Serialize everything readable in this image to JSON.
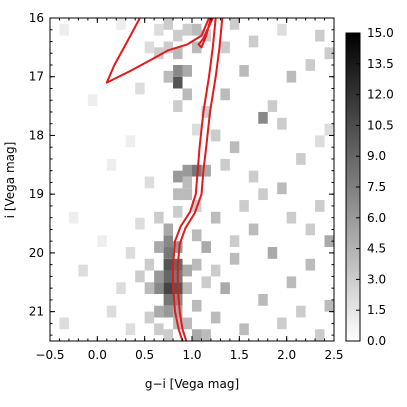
{
  "chart_data": {
    "type": "heatmap",
    "title": "",
    "xlabel": "g−i [Vega mag]",
    "ylabel": "i [Vega mag]",
    "xlim": [
      -0.5,
      2.5
    ],
    "ylim": [
      21.5,
      16.0
    ],
    "y_inverted": true,
    "x_ticks": [
      -0.5,
      0.0,
      0.5,
      1.0,
      1.5,
      2.0,
      2.5
    ],
    "x_tick_labels": [
      "−0.5",
      "0.0",
      "0.5",
      "1.0",
      "1.5",
      "2.0",
      "2.5"
    ],
    "y_ticks": [
      17,
      18,
      19,
      20,
      21
    ],
    "y_tick_labels": [
      "17",
      "18",
      "19",
      "20",
      "21"
    ],
    "grid": false,
    "colorbar": {
      "min": 0.0,
      "max": 15.0,
      "ticks": [
        0.0,
        1.5,
        3.0,
        4.5,
        6.0,
        7.5,
        9.0,
        10.5,
        12.0,
        13.5,
        15.0
      ],
      "tick_labels": [
        "0.0",
        "1.5",
        "3.0",
        "4.5",
        "6.0",
        "7.5",
        "9.0",
        "10.5",
        "12.0",
        "13.5",
        "15.0"
      ],
      "colormap": "greys",
      "color_low": "#ffffff",
      "color_high": "#000000"
    },
    "cells": [
      {
        "x": 0.75,
        "y": 20.2,
        "v": 10
      },
      {
        "x": 0.75,
        "y": 20.4,
        "v": 9
      },
      {
        "x": 0.75,
        "y": 20.6,
        "v": 11
      },
      {
        "x": 0.75,
        "y": 20.0,
        "v": 8
      },
      {
        "x": 0.75,
        "y": 19.8,
        "v": 7
      },
      {
        "x": 0.75,
        "y": 20.8,
        "v": 8
      },
      {
        "x": 0.85,
        "y": 20.2,
        "v": 9
      },
      {
        "x": 0.85,
        "y": 20.4,
        "v": 8
      },
      {
        "x": 0.85,
        "y": 20.6,
        "v": 10
      },
      {
        "x": 0.85,
        "y": 19.9,
        "v": 6
      },
      {
        "x": 0.85,
        "y": 20.8,
        "v": 7
      },
      {
        "x": 0.65,
        "y": 20.4,
        "v": 6
      },
      {
        "x": 0.65,
        "y": 20.6,
        "v": 7
      },
      {
        "x": 0.65,
        "y": 21.0,
        "v": 5
      },
      {
        "x": 0.75,
        "y": 21.0,
        "v": 6
      },
      {
        "x": 0.85,
        "y": 21.0,
        "v": 5
      },
      {
        "x": 0.65,
        "y": 19.9,
        "v": 5
      },
      {
        "x": 0.75,
        "y": 19.6,
        "v": 5
      },
      {
        "x": 0.95,
        "y": 20.3,
        "v": 5
      },
      {
        "x": 0.95,
        "y": 20.6,
        "v": 4
      },
      {
        "x": 1.05,
        "y": 20.9,
        "v": 4
      },
      {
        "x": 0.95,
        "y": 21.2,
        "v": 4
      },
      {
        "x": 0.85,
        "y": 21.2,
        "v": 4
      },
      {
        "x": 0.55,
        "y": 20.6,
        "v": 4
      },
      {
        "x": 0.55,
        "y": 20.2,
        "v": 3
      },
      {
        "x": 0.75,
        "y": 21.4,
        "v": 3
      },
      {
        "x": 0.45,
        "y": 20.4,
        "v": 3
      },
      {
        "x": 1.05,
        "y": 18.6,
        "v": 8
      },
      {
        "x": 0.95,
        "y": 18.6,
        "v": 6
      },
      {
        "x": 0.85,
        "y": 18.7,
        "v": 6
      },
      {
        "x": 1.15,
        "y": 18.6,
        "v": 5
      },
      {
        "x": 0.95,
        "y": 18.8,
        "v": 4
      },
      {
        "x": 0.85,
        "y": 19.0,
        "v": 4
      },
      {
        "x": 0.95,
        "y": 19.0,
        "v": 4
      },
      {
        "x": 0.85,
        "y": 19.3,
        "v": 3
      },
      {
        "x": 1.05,
        "y": 19.2,
        "v": 3
      },
      {
        "x": 0.85,
        "y": 17.1,
        "v": 10
      },
      {
        "x": 0.85,
        "y": 16.9,
        "v": 7
      },
      {
        "x": 0.95,
        "y": 16.9,
        "v": 5
      },
      {
        "x": 0.75,
        "y": 17.0,
        "v": 4
      },
      {
        "x": 0.95,
        "y": 17.3,
        "v": 4
      },
      {
        "x": 0.85,
        "y": 16.6,
        "v": 4
      },
      {
        "x": 0.85,
        "y": 17.5,
        "v": 3
      },
      {
        "x": 1.05,
        "y": 16.5,
        "v": 4
      },
      {
        "x": 0.95,
        "y": 16.2,
        "v": 3
      },
      {
        "x": 0.75,
        "y": 16.1,
        "v": 3
      },
      {
        "x": 1.15,
        "y": 16.3,
        "v": 3
      },
      {
        "x": 0.65,
        "y": 16.6,
        "v": 3
      },
      {
        "x": 0.65,
        "y": 16.2,
        "v": 2
      },
      {
        "x": 0.75,
        "y": 16.5,
        "v": 3
      },
      {
        "x": 0.85,
        "y": 16.3,
        "v": 3
      },
      {
        "x": 1.75,
        "y": 17.7,
        "v": 7
      },
      {
        "x": 1.55,
        "y": 16.9,
        "v": 4
      },
      {
        "x": 2.05,
        "y": 17.0,
        "v": 4
      },
      {
        "x": 1.35,
        "y": 17.3,
        "v": 4
      },
      {
        "x": 2.25,
        "y": 16.8,
        "v": 3
      },
      {
        "x": 1.45,
        "y": 18.2,
        "v": 4
      },
      {
        "x": 2.15,
        "y": 18.4,
        "v": 3
      },
      {
        "x": 1.95,
        "y": 18.9,
        "v": 4
      },
      {
        "x": 2.35,
        "y": 19.2,
        "v": 3
      },
      {
        "x": 1.25,
        "y": 19.4,
        "v": 4
      },
      {
        "x": 1.65,
        "y": 19.6,
        "v": 4
      },
      {
        "x": 2.45,
        "y": 19.8,
        "v": 5
      },
      {
        "x": 1.15,
        "y": 19.9,
        "v": 5
      },
      {
        "x": 1.45,
        "y": 20.1,
        "v": 4
      },
      {
        "x": 1.85,
        "y": 20.0,
        "v": 5
      },
      {
        "x": 2.25,
        "y": 20.2,
        "v": 4
      },
      {
        "x": 1.35,
        "y": 20.6,
        "v": 5
      },
      {
        "x": 1.75,
        "y": 20.8,
        "v": 4
      },
      {
        "x": 2.05,
        "y": 20.5,
        "v": 4
      },
      {
        "x": 2.45,
        "y": 20.9,
        "v": 4
      },
      {
        "x": 1.25,
        "y": 21.1,
        "v": 4
      },
      {
        "x": 1.55,
        "y": 21.3,
        "v": 4
      },
      {
        "x": 1.95,
        "y": 21.2,
        "v": 3
      },
      {
        "x": 2.35,
        "y": 21.4,
        "v": 3
      },
      {
        "x": 1.15,
        "y": 21.4,
        "v": 4
      },
      {
        "x": 1.05,
        "y": 21.4,
        "v": 5
      },
      {
        "x": 1.35,
        "y": 16.5,
        "v": 3
      },
      {
        "x": 1.65,
        "y": 16.4,
        "v": 3
      },
      {
        "x": 1.95,
        "y": 16.2,
        "v": 2
      },
      {
        "x": 2.35,
        "y": 16.3,
        "v": 3
      },
      {
        "x": 1.85,
        "y": 17.5,
        "v": 3
      },
      {
        "x": 2.45,
        "y": 17.9,
        "v": 2
      },
      {
        "x": 1.25,
        "y": 18.0,
        "v": 3
      },
      {
        "x": 1.65,
        "y": 18.7,
        "v": 3
      },
      {
        "x": 2.25,
        "y": 19.6,
        "v": 3
      },
      {
        "x": 1.55,
        "y": 19.2,
        "v": 3
      },
      {
        "x": 1.05,
        "y": 19.7,
        "v": 4
      },
      {
        "x": 0.45,
        "y": 19.5,
        "v": 2
      },
      {
        "x": 0.35,
        "y": 20.0,
        "v": 2
      },
      {
        "x": 0.25,
        "y": 20.6,
        "v": 2
      },
      {
        "x": 0.15,
        "y": 21.0,
        "v": 2
      },
      {
        "x": 0.35,
        "y": 21.3,
        "v": 2
      },
      {
        "x": -0.15,
        "y": 20.3,
        "v": 2
      },
      {
        "x": -0.35,
        "y": 21.2,
        "v": 2
      },
      {
        "x": 0.05,
        "y": 19.8,
        "v": 1
      },
      {
        "x": -0.25,
        "y": 19.4,
        "v": 1
      },
      {
        "x": 0.15,
        "y": 18.5,
        "v": 1
      },
      {
        "x": 0.35,
        "y": 18.1,
        "v": 1
      },
      {
        "x": -0.05,
        "y": 17.4,
        "v": 1
      },
      {
        "x": 0.45,
        "y": 17.2,
        "v": 2
      },
      {
        "x": 0.55,
        "y": 16.5,
        "v": 2
      },
      {
        "x": -0.35,
        "y": 16.2,
        "v": 1
      },
      {
        "x": 0.25,
        "y": 16.1,
        "v": 1
      },
      {
        "x": 0.55,
        "y": 18.8,
        "v": 2
      },
      {
        "x": 0.65,
        "y": 19.4,
        "v": 3
      },
      {
        "x": 0.55,
        "y": 21.1,
        "v": 3
      },
      {
        "x": 0.65,
        "y": 21.3,
        "v": 3
      },
      {
        "x": 1.05,
        "y": 20.2,
        "v": 4
      },
      {
        "x": 1.15,
        "y": 20.5,
        "v": 3
      },
      {
        "x": 1.25,
        "y": 20.3,
        "v": 3
      },
      {
        "x": 2.15,
        "y": 21.0,
        "v": 3
      },
      {
        "x": 2.05,
        "y": 19.4,
        "v": 3
      },
      {
        "x": 1.45,
        "y": 19.8,
        "v": 3
      },
      {
        "x": 1.35,
        "y": 18.5,
        "v": 3
      },
      {
        "x": 1.75,
        "y": 19.0,
        "v": 3
      },
      {
        "x": 2.35,
        "y": 18.1,
        "v": 2
      },
      {
        "x": 1.95,
        "y": 17.8,
        "v": 3
      },
      {
        "x": 1.15,
        "y": 17.6,
        "v": 3
      },
      {
        "x": 1.05,
        "y": 17.9,
        "v": 2
      },
      {
        "x": 1.05,
        "y": 16.2,
        "v": 4
      },
      {
        "x": 1.45,
        "y": 16.1,
        "v": 3
      },
      {
        "x": 2.45,
        "y": 16.6,
        "v": 3
      }
    ],
    "isochrones": [
      {
        "color": "#e31a1c",
        "points": [
          [
            0.45,
            16.0
          ],
          [
            0.3,
            16.45
          ],
          [
            0.18,
            16.8
          ],
          [
            0.1,
            17.1
          ],
          [
            0.35,
            16.9
          ],
          [
            0.58,
            16.7
          ],
          [
            0.75,
            16.55
          ],
          [
            0.95,
            16.45
          ],
          [
            1.1,
            16.3
          ],
          [
            1.18,
            16.0
          ]
        ]
      },
      {
        "color": "#e31a1c",
        "points": [
          [
            1.22,
            16.0
          ],
          [
            1.12,
            16.35
          ],
          [
            1.07,
            16.45
          ],
          [
            1.1,
            16.5
          ],
          [
            1.15,
            16.3
          ],
          [
            1.2,
            16.0
          ]
        ]
      },
      {
        "color": "#e31a1c",
        "points": [
          [
            1.25,
            16.0
          ],
          [
            1.22,
            16.5
          ],
          [
            1.18,
            17.0
          ],
          [
            1.12,
            17.6
          ],
          [
            1.08,
            18.2
          ],
          [
            1.06,
            18.6
          ],
          [
            1.04,
            19.0
          ],
          [
            0.98,
            19.3
          ],
          [
            0.88,
            19.55
          ],
          [
            0.82,
            19.8
          ],
          [
            0.8,
            20.2
          ],
          [
            0.8,
            20.6
          ],
          [
            0.82,
            21.0
          ],
          [
            0.86,
            21.3
          ],
          [
            0.9,
            21.5
          ]
        ]
      },
      {
        "color": "#e31a1c",
        "points": [
          [
            1.32,
            16.0
          ],
          [
            1.29,
            16.5
          ],
          [
            1.25,
            17.0
          ],
          [
            1.19,
            17.6
          ],
          [
            1.15,
            18.2
          ],
          [
            1.12,
            18.6
          ],
          [
            1.1,
            19.0
          ],
          [
            1.03,
            19.32
          ],
          [
            0.93,
            19.58
          ],
          [
            0.87,
            19.85
          ],
          [
            0.85,
            20.2
          ],
          [
            0.85,
            20.6
          ],
          [
            0.87,
            21.0
          ],
          [
            0.9,
            21.3
          ],
          [
            0.94,
            21.5
          ]
        ]
      }
    ]
  }
}
